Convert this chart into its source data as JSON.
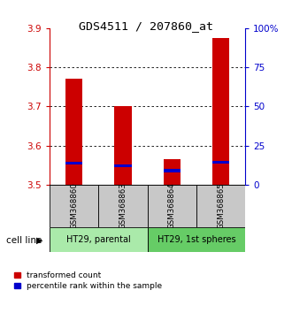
{
  "title": "GDS4511 / 207860_at",
  "samples": [
    "GSM368860",
    "GSM368863",
    "GSM368864",
    "GSM368865"
  ],
  "red_values": [
    3.77,
    3.7,
    3.565,
    3.875
  ],
  "blue_values": [
    3.555,
    3.548,
    3.536,
    3.557
  ],
  "y_min": 3.5,
  "y_max": 3.9,
  "y_ticks": [
    3.5,
    3.6,
    3.7,
    3.8,
    3.9
  ],
  "right_y_ticks": [
    0,
    25,
    50,
    75,
    100
  ],
  "right_y_labels": [
    "0",
    "25",
    "50",
    "75",
    "100%"
  ],
  "bar_width": 0.35,
  "blue_bar_height": 0.008,
  "cell_line_groups": [
    {
      "label": "HT29, parental",
      "samples": [
        0,
        1
      ],
      "color": "#aaeaaa"
    },
    {
      "label": "HT29, 1st spheres",
      "samples": [
        2,
        3
      ],
      "color": "#66cc66"
    }
  ],
  "sample_bg_color": "#c8c8c8",
  "title_color": "#000000",
  "red_color": "#cc0000",
  "blue_color": "#0000cc",
  "left_axis_color": "#cc0000",
  "right_axis_color": "#0000cc",
  "legend_red_label": "transformed count",
  "legend_blue_label": "percentile rank within the sample",
  "fig_width": 3.3,
  "fig_height": 3.54,
  "dpi": 100
}
